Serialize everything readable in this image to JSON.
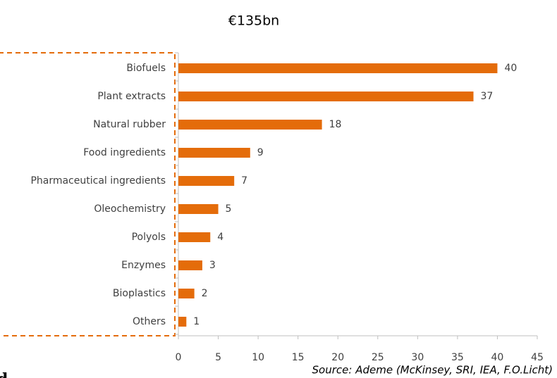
{
  "chart_data": {
    "type": "bar",
    "orientation": "horizontal",
    "title": "€135bn",
    "categories": [
      "Biofuels",
      "Plant extracts",
      "Natural rubber",
      "Food ingredients",
      "Pharmaceutical ingredients",
      "Oleochemistry",
      "Polyols",
      "Enzymes",
      "Bioplastics",
      "Others"
    ],
    "values": [
      40,
      37,
      18,
      9,
      7,
      5,
      4,
      3,
      2,
      1
    ],
    "color": "#e46c0a",
    "xlim": [
      0,
      45
    ],
    "xticks": [
      0,
      5,
      10,
      15,
      20,
      25,
      30,
      35,
      40,
      45
    ],
    "source": "Source: Ademe (McKinsey, SRI, IEA, F.O.Licht)",
    "fragment": "d"
  }
}
